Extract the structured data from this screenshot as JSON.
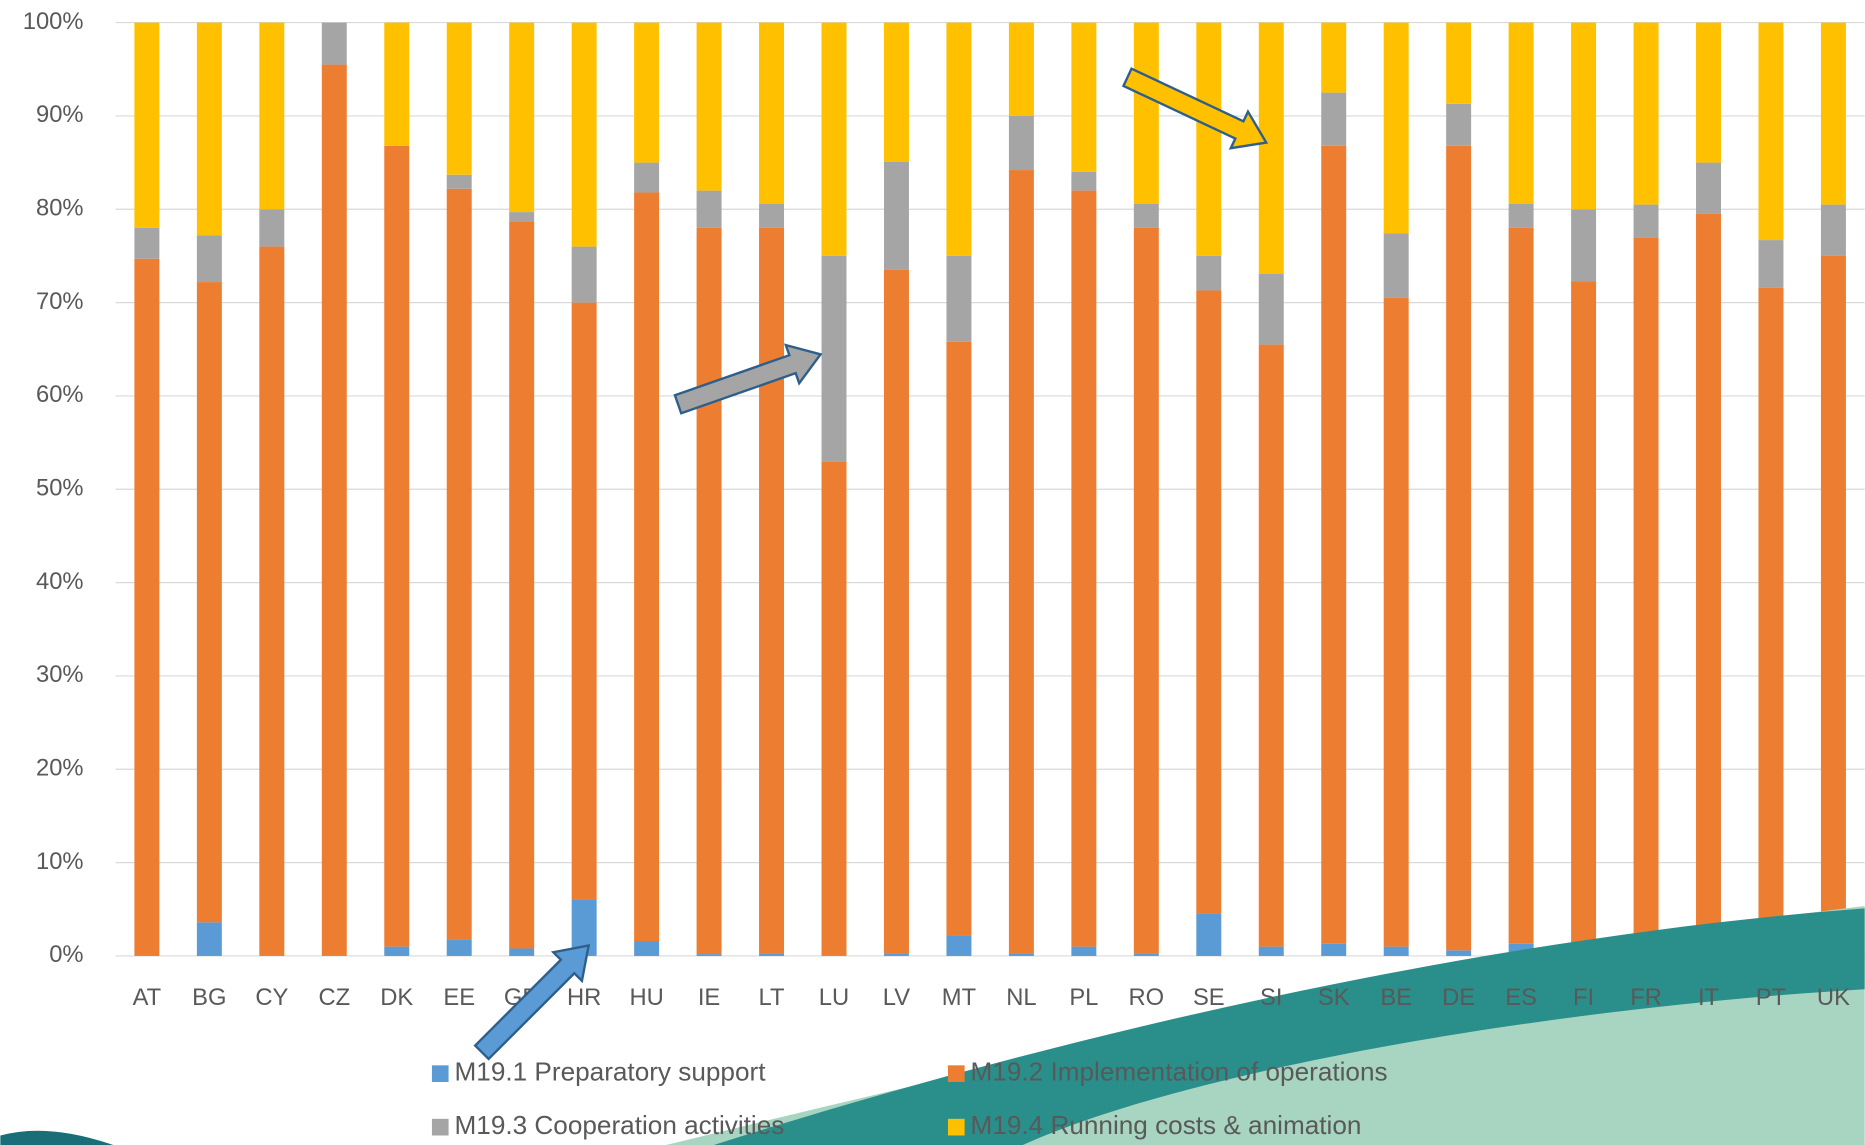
{
  "chart_data": {
    "type": "stacked_bar",
    "categories": [
      "AT",
      "BG",
      "CY",
      "CZ",
      "DK",
      "EE",
      "GR",
      "HR",
      "HU",
      "IE",
      "LT",
      "LU",
      "LV",
      "MT",
      "NL",
      "PL",
      "RO",
      "SE",
      "SI",
      "SK",
      "BE",
      "DE",
      "ES",
      "FI",
      "FR",
      "IT",
      "PT",
      "UK"
    ],
    "series": [
      {
        "name": "M19.1 Preparatory support",
        "color": "#5b9bd5",
        "values": [
          0,
          3.6,
          0,
          0,
          1,
          1.8,
          0.8,
          6,
          1.6,
          0.2,
          0.3,
          0,
          0.3,
          2.2,
          0.3,
          1,
          0.3,
          4.5,
          1,
          1.3,
          1,
          0.6,
          1.3,
          0,
          1,
          1,
          1,
          0
        ]
      },
      {
        "name": "M19.2 Implementation of operations",
        "color": "#ed7d31",
        "values": [
          74.7,
          68.6,
          76,
          95.5,
          85.8,
          80.4,
          77.9,
          64,
          80.2,
          77.8,
          77.7,
          53,
          73.2,
          63.6,
          83.9,
          81,
          77.7,
          66.8,
          64.5,
          85.5,
          69.5,
          86.2,
          76.7,
          72.3,
          76,
          78.5,
          70.6,
          75
        ]
      },
      {
        "name": "M19.3 Cooperation activities",
        "color": "#a5a5a5",
        "values": [
          3.3,
          5,
          4,
          4.5,
          0,
          1.5,
          1,
          6,
          3.2,
          4,
          2.6,
          22,
          11.6,
          9.2,
          5.8,
          2,
          2.6,
          3.7,
          7.6,
          5.7,
          6.9,
          4.5,
          2.6,
          7.7,
          3.5,
          5.5,
          5.1,
          5.5
        ]
      },
      {
        "name": "M19.4 Running costs & animation",
        "color": "#ffc000",
        "values": [
          22,
          22.8,
          20,
          0,
          13.2,
          16.3,
          20.3,
          24,
          15,
          18,
          19.4,
          25,
          14.9,
          25,
          10,
          16,
          19.4,
          25,
          26.9,
          7.5,
          22.6,
          8.7,
          19.4,
          20,
          19.5,
          15,
          23.3,
          19.5
        ]
      }
    ],
    "ylim": [
      0,
      100
    ],
    "yticks": [
      {
        "value": 0,
        "label": "0%"
      },
      {
        "value": 10,
        "label": "10%"
      },
      {
        "value": 20,
        "label": "20%"
      },
      {
        "value": 30,
        "label": "30%"
      },
      {
        "value": 40,
        "label": "40%"
      },
      {
        "value": 50,
        "label": "50%"
      },
      {
        "value": 60,
        "label": "60%"
      },
      {
        "value": 70,
        "label": "70%"
      },
      {
        "value": 80,
        "label": "80%"
      },
      {
        "value": 90,
        "label": "90%"
      },
      {
        "value": 100,
        "label": "100%"
      }
    ],
    "grid": true
  }
}
